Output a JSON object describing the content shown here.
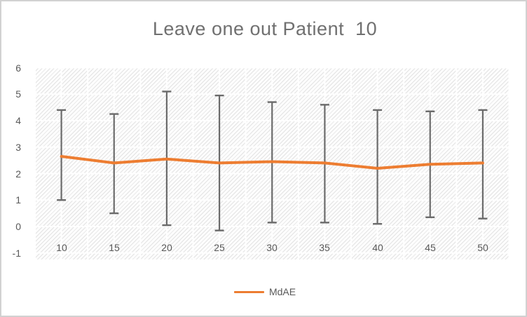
{
  "window": {
    "background": "#ffffff",
    "border_color": "#d1d1d1"
  },
  "chart_data": {
    "type": "line",
    "title": "Leave one out Patient  10",
    "title_color": "#707070",
    "categories": [
      10,
      15,
      20,
      25,
      30,
      35,
      40,
      45,
      50
    ],
    "series": [
      {
        "name": "MdAE",
        "color": "#ED7D31",
        "values": [
          2.65,
          2.4,
          2.55,
          2.4,
          2.45,
          2.4,
          2.2,
          2.35,
          2.4
        ]
      }
    ],
    "error_bars": {
      "color": "#6b6b6b",
      "upper": [
        4.4,
        4.25,
        5.1,
        4.95,
        4.7,
        4.6,
        4.4,
        4.35,
        4.4
      ],
      "lower": [
        1.0,
        0.5,
        0.05,
        -0.15,
        0.15,
        0.15,
        0.1,
        0.35,
        0.3
      ]
    },
    "xlabel": "",
    "ylabel": "",
    "ylim": [
      -1,
      6
    ],
    "yticks": [
      6,
      5,
      4,
      3,
      2,
      1,
      0,
      -1
    ],
    "grid": "white gridlines, 1-unit horizontal spacing, half-category vertical spacing, over light diagonal hatch plot fill",
    "gridline_color": "#ffffff",
    "hatch_color": "#e3e3e3",
    "tick_color": "#595959",
    "legend": {
      "position": "bottom-center",
      "entries": [
        "MdAE"
      ]
    }
  }
}
